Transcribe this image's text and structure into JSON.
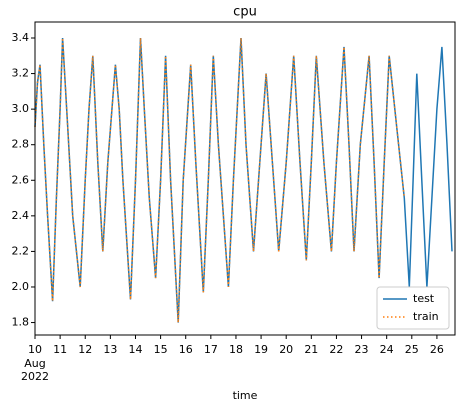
{
  "chart_data": {
    "type": "line",
    "title": "cpu",
    "xlabel": "time",
    "x_sublabels": [
      "Aug",
      "2022"
    ],
    "x": [
      10.0,
      10.1,
      10.2,
      10.35,
      10.5,
      10.7,
      10.85,
      11.0,
      11.1,
      11.3,
      11.5,
      11.8,
      12.0,
      12.15,
      12.3,
      12.5,
      12.7,
      12.9,
      13.2,
      13.35,
      13.5,
      13.8,
      14.0,
      14.2,
      14.35,
      14.55,
      14.8,
      15.0,
      15.2,
      15.4,
      15.7,
      15.9,
      16.2,
      16.4,
      16.7,
      16.9,
      17.1,
      17.3,
      17.5,
      17.7,
      17.9,
      18.2,
      18.4,
      18.7,
      18.95,
      19.2,
      19.45,
      19.7,
      20.0,
      20.3,
      20.55,
      20.8,
      21.0,
      21.2,
      21.5,
      21.8,
      22.0,
      22.3,
      22.5,
      22.7,
      22.95,
      23.3,
      23.5,
      23.7,
      23.9,
      24.1,
      24.4,
      24.7,
      24.9,
      25.05,
      25.2,
      25.4,
      25.6,
      25.8,
      26.0,
      26.2,
      26.4,
      26.6
    ],
    "series": [
      {
        "name": "test",
        "color": "#1f77b4",
        "style": "solid",
        "values": [
          2.9,
          3.15,
          3.25,
          2.8,
          2.4,
          1.92,
          2.5,
          3.0,
          3.4,
          2.9,
          2.4,
          2.0,
          2.6,
          3.0,
          3.3,
          2.7,
          2.2,
          2.7,
          3.25,
          3.0,
          2.6,
          1.93,
          2.6,
          3.4,
          3.0,
          2.5,
          2.05,
          2.6,
          3.3,
          2.6,
          1.8,
          2.6,
          3.25,
          2.7,
          1.97,
          2.6,
          3.3,
          2.8,
          2.4,
          2.0,
          2.6,
          3.4,
          2.8,
          2.2,
          2.7,
          3.2,
          2.7,
          2.2,
          2.7,
          3.3,
          2.7,
          2.15,
          2.7,
          3.3,
          2.7,
          2.2,
          2.7,
          3.35,
          2.8,
          2.2,
          2.8,
          3.3,
          2.7,
          2.05,
          2.7,
          3.3,
          2.9,
          2.5,
          2.0,
          2.6,
          3.2,
          2.6,
          2.0,
          2.5,
          3.0,
          3.35,
          2.8,
          2.2
        ]
      },
      {
        "name": "train",
        "color": "#ff7f0e",
        "style": "dotted",
        "values": [
          2.9,
          3.15,
          3.25,
          2.8,
          2.4,
          1.92,
          2.5,
          3.0,
          3.4,
          2.9,
          2.4,
          2.0,
          2.6,
          3.0,
          3.3,
          2.7,
          2.2,
          2.7,
          3.25,
          3.0,
          2.6,
          1.93,
          2.6,
          3.4,
          3.0,
          2.5,
          2.05,
          2.6,
          3.3,
          2.6,
          1.8,
          2.6,
          3.25,
          2.7,
          1.97,
          2.6,
          3.3,
          2.8,
          2.4,
          2.0,
          2.6,
          3.4,
          2.8,
          2.2,
          2.7,
          3.2,
          2.7,
          2.2,
          2.7,
          3.3,
          2.7,
          2.15,
          2.7,
          3.3,
          2.7,
          2.2,
          2.7,
          3.35,
          2.8,
          2.2,
          2.8,
          3.3,
          2.7,
          2.05,
          2.7,
          3.3,
          2.9,
          2.5,
          null,
          null,
          null,
          null,
          null,
          null,
          null,
          null,
          null,
          null
        ]
      }
    ],
    "xlim": [
      10,
      26.72
    ],
    "xticks": [
      10,
      11,
      12,
      13,
      14,
      15,
      16,
      17,
      18,
      19,
      20,
      21,
      22,
      23,
      24,
      25,
      26
    ],
    "ylim": [
      1.73,
      3.49
    ],
    "yticks": [
      {
        "value": 1.8,
        "label": "1.8"
      },
      {
        "value": 2.0,
        "label": "2.0"
      },
      {
        "value": 2.2,
        "label": "2.2"
      },
      {
        "value": 2.4,
        "label": "2.4"
      },
      {
        "value": 2.6,
        "label": "2.6"
      },
      {
        "value": 2.8,
        "label": "2.8"
      },
      {
        "value": 3.0,
        "label": "3.0"
      },
      {
        "value": 3.2,
        "label": "3.2"
      },
      {
        "value": 3.4,
        "label": "3.4"
      }
    ],
    "legend": "lower right"
  }
}
